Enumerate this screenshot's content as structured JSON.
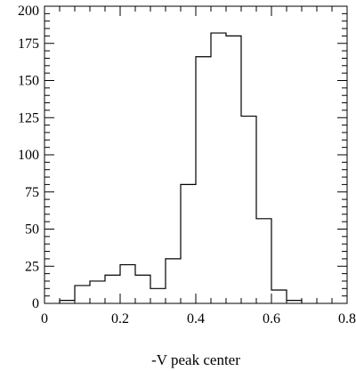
{
  "chart_data": {
    "type": "bar",
    "histogram": true,
    "title": "",
    "xlabel": "-V peak center",
    "ylabel": "",
    "xlim": [
      0,
      0.8
    ],
    "ylim": [
      0,
      200
    ],
    "grid": false,
    "x_ticks": [
      0,
      0.2,
      0.4,
      0.6,
      0.8
    ],
    "x_tick_labels": [
      "0",
      "0.2",
      "0.4",
      "0.6",
      "0.8"
    ],
    "y_ticks": [
      0,
      25,
      50,
      75,
      100,
      125,
      150,
      175,
      200
    ],
    "y_tick_labels": [
      "0",
      "25",
      "50",
      "75",
      "100",
      "125",
      "150",
      "175",
      "200"
    ],
    "bin_edges": [
      0.04,
      0.08,
      0.12,
      0.16,
      0.2,
      0.24,
      0.28,
      0.32,
      0.36,
      0.4,
      0.44,
      0.48,
      0.52,
      0.56,
      0.6,
      0.64,
      0.68
    ],
    "values": [
      2,
      12,
      15,
      19,
      26,
      19,
      10,
      30,
      80,
      166,
      182,
      180,
      126,
      57,
      9,
      2
    ]
  }
}
